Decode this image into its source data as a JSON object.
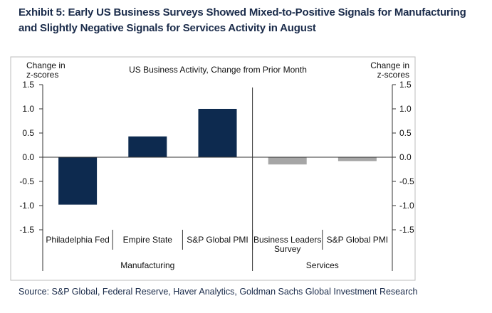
{
  "exhibit": {
    "title": "Exhibit 5: Early US Business Surveys Showed Mixed-to-Positive Signals for Manufacturing and Slightly Negative Signals for Services Activity in August",
    "source": "Source: S&P Global, Federal Reserve, Haver Analytics, Goldman Sachs Global Investment Research"
  },
  "chart_data": {
    "type": "bar",
    "title": "US Business Activity,  Change from Prior Month",
    "ylabel_left": [
      "Change in",
      "z-scores"
    ],
    "ylabel_right": [
      "Change in",
      "z-scores"
    ],
    "ylim": [
      -1.5,
      1.5
    ],
    "yticks": [
      1.5,
      1.0,
      0.5,
      0.0,
      -0.5,
      -1.0,
      -1.5
    ],
    "ytick_labels": [
      "1.5",
      "1.0",
      "0.5",
      "0.0",
      "-0.5",
      "-1.0",
      "-1.5"
    ],
    "categories": [
      {
        "label": [
          "Philadelphia Fed"
        ],
        "value": -0.98,
        "group": "Manufacturing",
        "color": "#0d2a4f"
      },
      {
        "label": [
          "Empire State"
        ],
        "value": 0.43,
        "group": "Manufacturing",
        "color": "#0d2a4f"
      },
      {
        "label": [
          "S&P Global PMI"
        ],
        "value": 1.0,
        "group": "Manufacturing",
        "color": "#0d2a4f"
      },
      {
        "label": [
          "Business Leaders",
          "Survey"
        ],
        "value": -0.15,
        "group": "Services",
        "color": "#a6a6a6"
      },
      {
        "label": [
          "S&P Global PMI"
        ],
        "value": -0.08,
        "group": "Services",
        "color": "#a6a6a6"
      }
    ],
    "groups": [
      {
        "name": "Manufacturing",
        "count": 3
      },
      {
        "name": "Services",
        "count": 2
      }
    ]
  }
}
